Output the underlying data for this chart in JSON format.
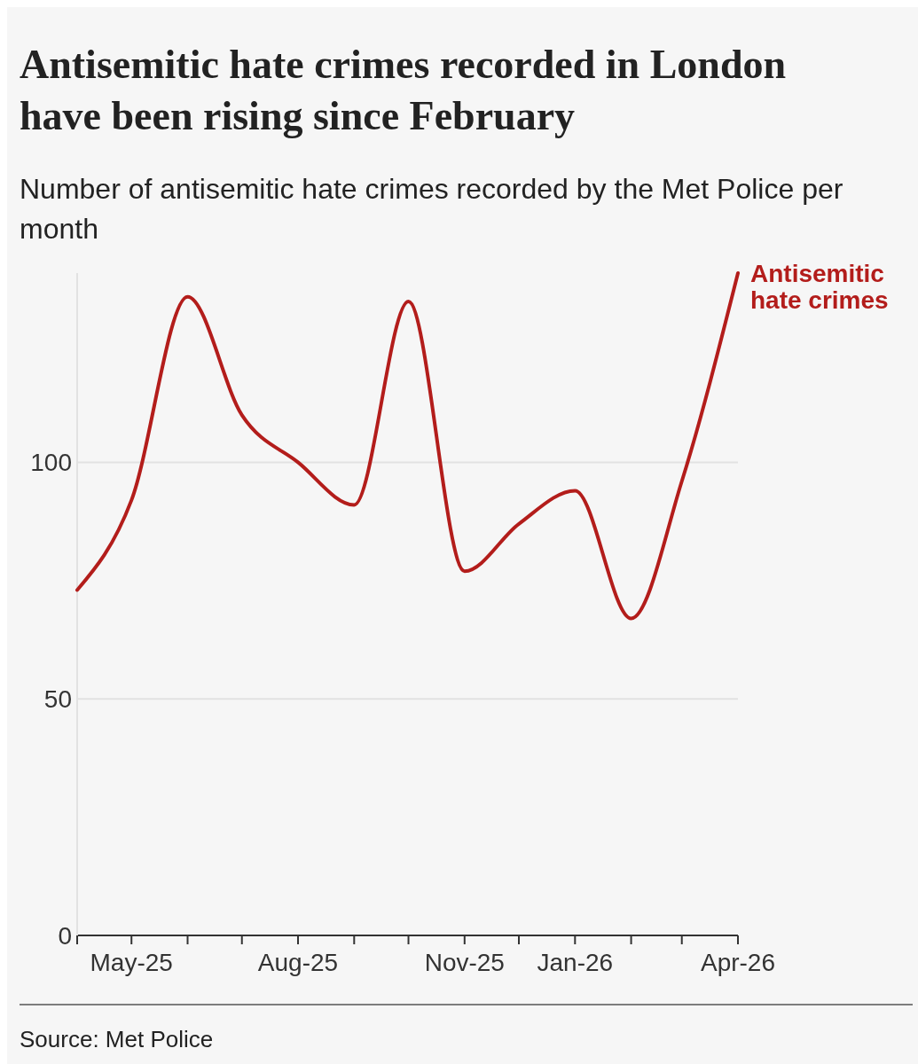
{
  "chart_data": {
    "type": "line",
    "title": "Antisemitic hate crimes recorded in London have been rising since February",
    "subtitle": "Number of antisemitic hate crimes recorded by the Met Police per month",
    "x": [
      "2025-04-01",
      "2025-05-01",
      "2025-06-01",
      "2025-07-01",
      "2025-08-01",
      "2025-09-01",
      "2025-10-01",
      "2025-11-01",
      "2025-12-01",
      "2026-01-01",
      "2026-02-01",
      "2026-03-01",
      "2026-04-01"
    ],
    "series": [
      {
        "name": "Antisemitic hate crimes",
        "color": "#b31d1b",
        "values": [
          73,
          92,
          135,
          110,
          100,
          91,
          134,
          77,
          87,
          94,
          67,
          96,
          140
        ]
      }
    ],
    "xlim": [
      "2025-04-01",
      "2026-04-01"
    ],
    "xticks": [
      {
        "value": "2025-04-01",
        "label": null
      },
      {
        "value": "2025-05-01",
        "label": "May-25"
      },
      {
        "value": "2025-06-01",
        "label": null
      },
      {
        "value": "2025-07-01",
        "label": null
      },
      {
        "value": "2025-08-01",
        "label": "Aug-25"
      },
      {
        "value": "2025-09-01",
        "label": null
      },
      {
        "value": "2025-10-01",
        "label": null
      },
      {
        "value": "2025-11-01",
        "label": "Nov-25"
      },
      {
        "value": "2025-12-01",
        "label": null
      },
      {
        "value": "2026-01-01",
        "label": "Jan-26"
      },
      {
        "value": "2026-02-01",
        "label": null
      },
      {
        "value": "2026-03-01",
        "label": null
      },
      {
        "value": "2026-04-01",
        "label": "Apr-26"
      }
    ],
    "ylim": [
      0,
      140
    ],
    "yticks": [
      0,
      50,
      100
    ],
    "grid": "y",
    "annotations": [
      "Source: Met Police"
    ]
  }
}
